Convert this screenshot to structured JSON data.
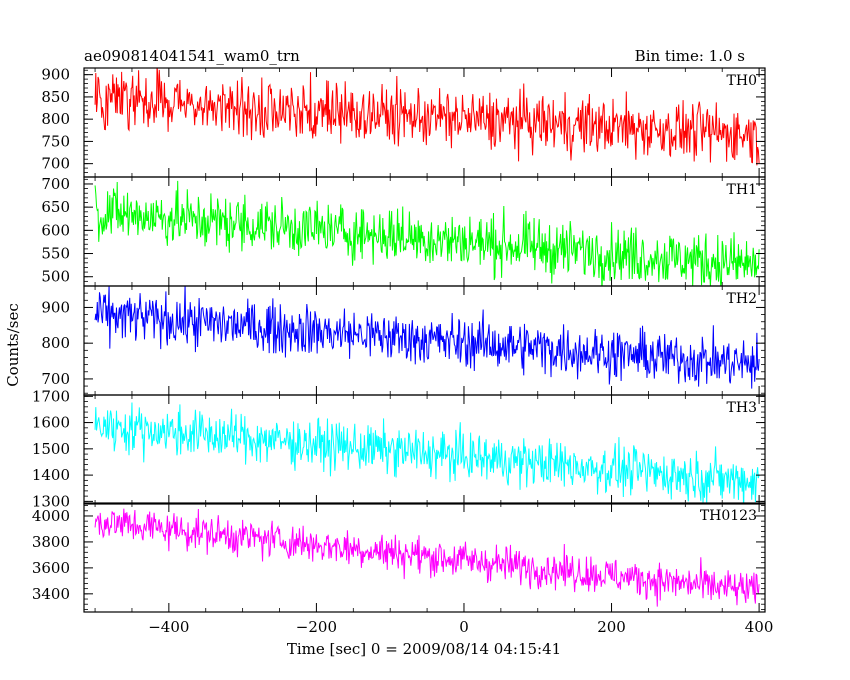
{
  "chart_data": {
    "type": "line",
    "title_left": "ae090814041541_wam0_trn",
    "title_right": "Bin time: 1.0 s",
    "xlabel": "Time [sec] 0 = 2009/08/14 04:15:41",
    "ylabel": "Counts/sec",
    "xlim": [
      -515,
      408
    ],
    "xticks": [
      -400,
      -200,
      0,
      200,
      400
    ],
    "x": {
      "start": -500,
      "end": 400,
      "step": 1
    },
    "series": [
      {
        "name": "TH0",
        "color": "#ff0000",
        "ylim": [
          670,
          915
        ],
        "yticks": [
          700,
          750,
          800,
          850,
          900
        ],
        "mean_start": 845,
        "mean_end": 765,
        "noise": 32
      },
      {
        "name": "TH1",
        "color": "#00ff00",
        "ylim": [
          480,
          715
        ],
        "yticks": [
          500,
          550,
          600,
          650,
          700
        ],
        "mean_start": 640,
        "mean_end": 525,
        "noise": 30
      },
      {
        "name": "TH2",
        "color": "#0000ff",
        "ylim": [
          655,
          960
        ],
        "yticks": [
          700,
          800,
          900
        ],
        "mean_start": 880,
        "mean_end": 740,
        "noise": 35
      },
      {
        "name": "TH3",
        "color": "#00ffff",
        "ylim": [
          1290,
          1705
        ],
        "yticks": [
          1300,
          1400,
          1500,
          1600,
          1700
        ],
        "mean_start": 1590,
        "mean_end": 1375,
        "noise": 45
      },
      {
        "name": "TH0123",
        "color": "#ff00ff",
        "ylim": [
          3260,
          4100
        ],
        "yticks": [
          3400,
          3600,
          3800,
          4000
        ],
        "mean_start": 3960,
        "mean_end": 3420,
        "noise": 70
      }
    ]
  }
}
